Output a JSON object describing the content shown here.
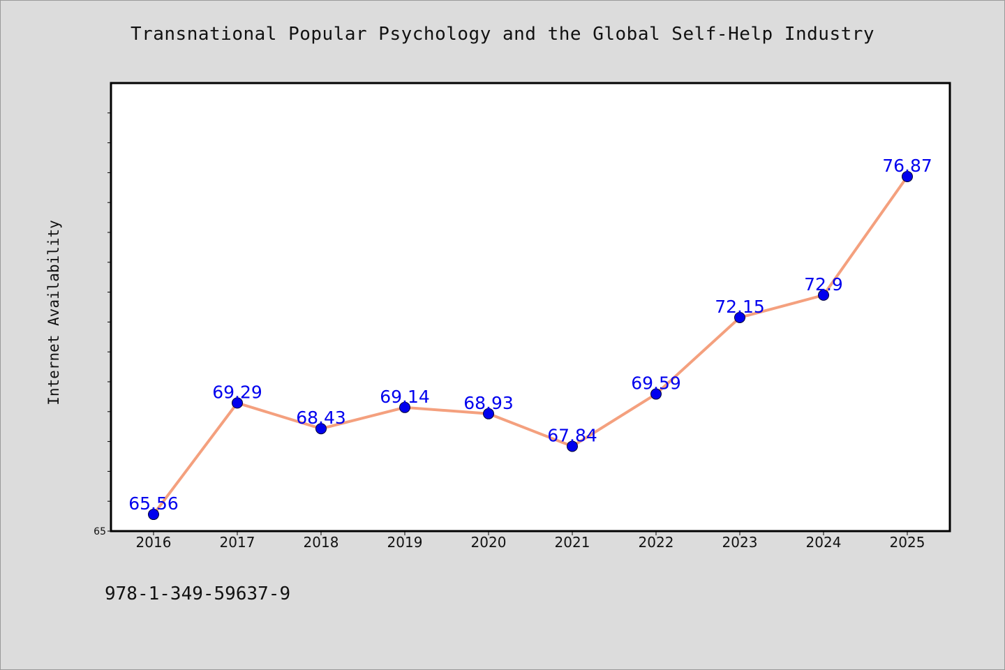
{
  "chart_data": {
    "type": "line",
    "title": "Transnational Popular Psychology and the Global Self-Help Industry",
    "xlabel": "",
    "ylabel": "Internet Availability",
    "categories": [
      "2016",
      "2017",
      "2018",
      "2019",
      "2020",
      "2021",
      "2022",
      "2023",
      "2024",
      "2025"
    ],
    "series": [
      {
        "values": [
          65.56,
          69.29,
          68.43,
          69.14,
          68.93,
          67.84,
          69.59,
          72.15,
          72.9,
          76.87
        ],
        "labels": [
          "65.56",
          "69.29",
          "68.43",
          "69.14",
          "68.93",
          "67.84",
          "69.59",
          "72.15",
          "72.9",
          "76.87"
        ],
        "line_color": "#f4a07e",
        "marker_color": "#0000ee",
        "label_color": "#0000ee"
      }
    ],
    "ylim": [
      65,
      80
    ],
    "y_min_label": "65",
    "grid": false,
    "legend": "none"
  },
  "footer_text": "978-1-349-59637-9"
}
